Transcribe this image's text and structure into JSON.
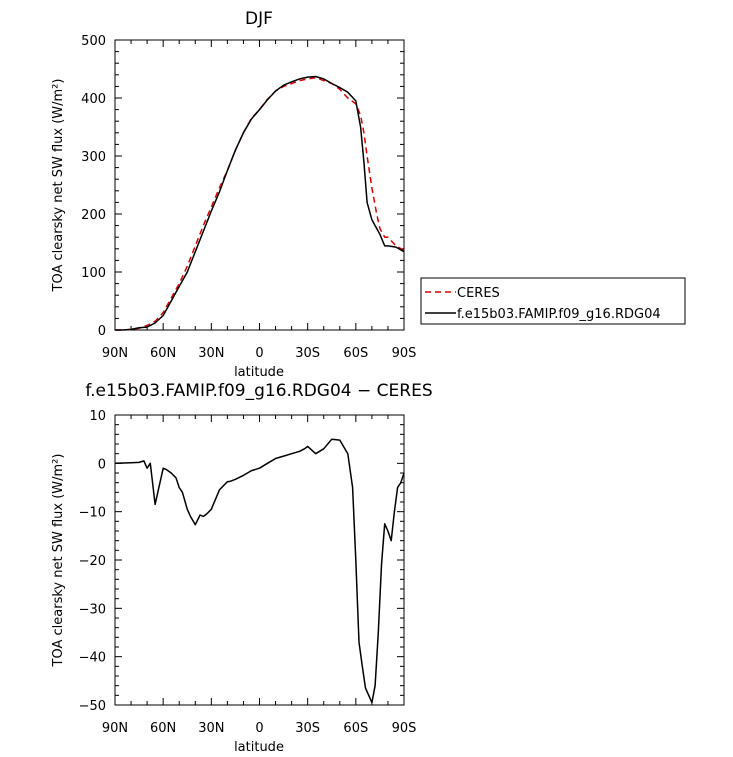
{
  "chart_data": [
    {
      "type": "line",
      "title": "DJF",
      "xlabel": "latitude",
      "ylabel": "TOA clearsky net SW flux (W/m²)",
      "xticks": [
        "90N",
        "60N",
        "30N",
        "0",
        "30S",
        "60S",
        "90S"
      ],
      "ylim": [
        0,
        500
      ],
      "yticks": [
        "0",
        "100",
        "200",
        "300",
        "400",
        "500"
      ],
      "legend": "right",
      "series": [
        {
          "name": "CERES",
          "color": "#dd0000",
          "dash": true,
          "x": [
            90,
            85,
            80,
            75,
            70,
            65,
            60,
            55,
            50,
            45,
            40,
            35,
            30,
            25,
            20,
            15,
            10,
            5,
            0,
            -5,
            -10,
            -15,
            -20,
            -25,
            -30,
            -35,
            -40,
            -45,
            -50,
            -55,
            -60,
            -63,
            -65,
            -67,
            -70,
            -73,
            -75,
            -78,
            -80,
            -85,
            -90
          ],
          "y": [
            0,
            0,
            1,
            3,
            8,
            15,
            30,
            55,
            80,
            110,
            145,
            180,
            212,
            245,
            275,
            310,
            340,
            365,
            380,
            398,
            412,
            420,
            425,
            430,
            433,
            435,
            430,
            425,
            415,
            400,
            390,
            370,
            340,
            300,
            245,
            200,
            175,
            160,
            160,
            145,
            137
          ]
        },
        {
          "name": "f.e15b03.FAMIP.f09_g16.RDG04",
          "color": "#000000",
          "dash": false,
          "x": [
            90,
            85,
            80,
            75,
            70,
            65,
            60,
            55,
            50,
            45,
            40,
            35,
            30,
            25,
            20,
            15,
            10,
            5,
            0,
            -5,
            -10,
            -15,
            -20,
            -25,
            -30,
            -35,
            -40,
            -45,
            -50,
            -55,
            -60,
            -63,
            -65,
            -67,
            -70,
            -73,
            -75,
            -78,
            -80,
            -85,
            -90
          ],
          "y": [
            0,
            0,
            1,
            4,
            5,
            12,
            25,
            50,
            75,
            100,
            135,
            170,
            205,
            238,
            275,
            310,
            340,
            364,
            380,
            397,
            412,
            422,
            428,
            433,
            436,
            437,
            433,
            425,
            418,
            410,
            395,
            350,
            290,
            220,
            190,
            175,
            165,
            145,
            145,
            143,
            135
          ]
        }
      ]
    },
    {
      "type": "line",
      "title": "f.e15b03.FAMIP.f09_g16.RDG04 − CERES",
      "xlabel": "latitude",
      "ylabel": "TOA clearsky net SW flux (W/m²)",
      "xticks": [
        "90N",
        "60N",
        "30N",
        "0",
        "30S",
        "60S",
        "90S"
      ],
      "ylim": [
        -50,
        10
      ],
      "yticks": [
        "10",
        "0",
        "−10",
        "−20",
        "−30",
        "−40",
        "−50"
      ],
      "series": [
        {
          "color": "#000000",
          "dash": false,
          "x": [
            90,
            80,
            75,
            72,
            70,
            68,
            65,
            60,
            58,
            55,
            52,
            50,
            48,
            45,
            43,
            40,
            37,
            35,
            33,
            30,
            25,
            20,
            18,
            15,
            10,
            5,
            0,
            -5,
            -10,
            -15,
            -20,
            -25,
            -28,
            -30,
            -35,
            -40,
            -45,
            -50,
            -55,
            -58,
            -60,
            -62,
            -64,
            -66,
            -68,
            -70,
            -72,
            -74,
            -76,
            -78,
            -80,
            -82,
            -84,
            -86,
            -88,
            -90
          ],
          "y": [
            0,
            0.1,
            0.2,
            0.5,
            -1,
            0,
            -8.5,
            -1,
            -1.3,
            -2,
            -3,
            -5,
            -6,
            -9.5,
            -11,
            -12.7,
            -10.7,
            -11,
            -10.5,
            -9.5,
            -5.5,
            -3.8,
            -3.7,
            -3.3,
            -2.5,
            -1.5,
            -1,
            0,
            1,
            1.5,
            2,
            2.5,
            3,
            3.5,
            2,
            3,
            5,
            4.8,
            2,
            -5,
            -20,
            -37,
            -42,
            -46.5,
            -48,
            -49.5,
            -46,
            -35,
            -21,
            -12.5,
            -14,
            -16,
            -10,
            -5,
            -4,
            -2
          ]
        }
      ]
    }
  ]
}
